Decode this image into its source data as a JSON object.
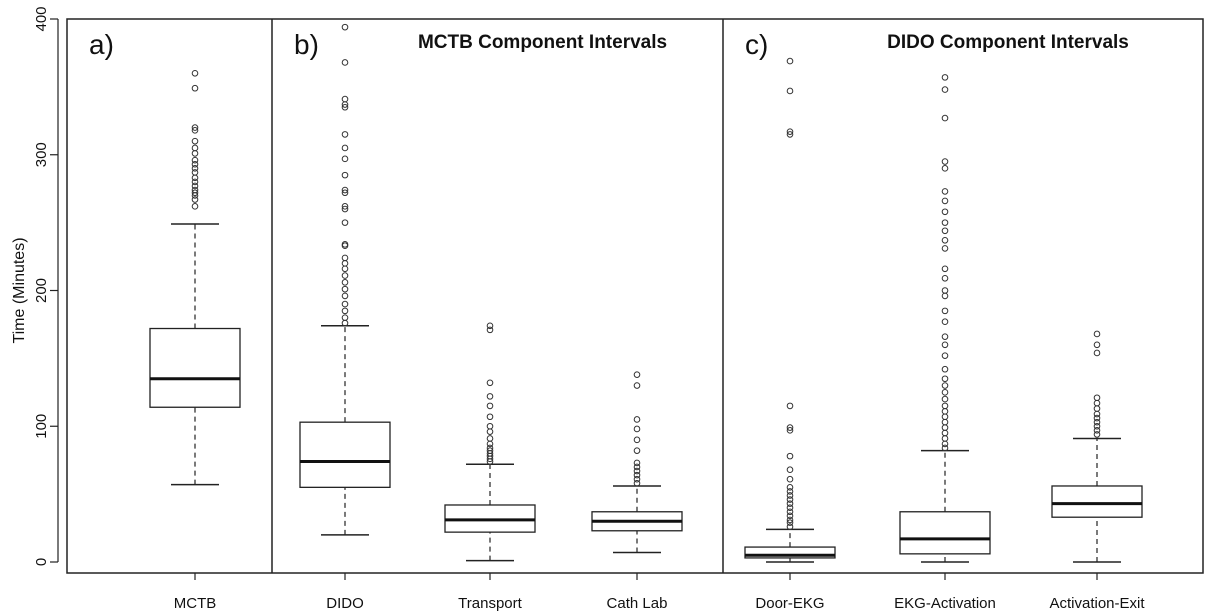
{
  "chart_data": {
    "type": "box",
    "ylabel": "Time (Minutes)",
    "ylim": [
      0,
      400
    ],
    "yticks": [
      0,
      100,
      200,
      300,
      400
    ],
    "panels": [
      {
        "label": "a)",
        "title": "",
        "categories": [
          {
            "name": "MCTB",
            "min": 57,
            "q1": 114,
            "median": 135,
            "q3": 172,
            "max": 249,
            "outliers": [
              262,
              267,
              270,
              272,
              274,
              277,
              280,
              283,
              287,
              290,
              293,
              296,
              301,
              305,
              310,
              318,
              320,
              349,
              360
            ]
          }
        ]
      },
      {
        "label": "b)",
        "title": "MCTB Component Intervals",
        "categories": [
          {
            "name": "DIDO",
            "min": 20,
            "q1": 55,
            "median": 74,
            "q3": 103,
            "max": 174,
            "outliers": [
              176,
              180,
              185,
              190,
              196,
              201,
              206,
              211,
              216,
              220,
              224,
              233,
              234,
              250,
              260,
              262,
              272,
              274,
              285,
              297,
              305,
              315,
              335,
              337,
              341,
              368,
              394
            ]
          },
          {
            "name": "Transport",
            "min": 1,
            "q1": 22,
            "median": 31,
            "q3": 42,
            "max": 72,
            "outliers": [
              74,
              76,
              78,
              80,
              82,
              84,
              87,
              91,
              96,
              100,
              107,
              115,
              122,
              132,
              171,
              174
            ]
          },
          {
            "name": "Cath Lab",
            "min": 7,
            "q1": 23,
            "median": 30,
            "q3": 37,
            "max": 56,
            "outliers": [
              58,
              61,
              64,
              67,
              70,
              73,
              82,
              90,
              98,
              105,
              130,
              138
            ]
          }
        ]
      },
      {
        "label": "c)",
        "title": "DIDO Component Intervals",
        "categories": [
          {
            "name": "Door-EKG",
            "min": 0,
            "q1": 3,
            "median": 5,
            "q3": 11,
            "max": 24,
            "outliers": [
              26,
              29,
              31,
              34,
              37,
              40,
              43,
              46,
              49,
              52,
              55,
              61,
              68,
              78,
              97,
              99,
              115,
              315,
              317,
              347,
              369
            ]
          },
          {
            "name": "EKG-Activation",
            "min": 0,
            "q1": 6,
            "median": 17,
            "q3": 37,
            "max": 82,
            "outliers": [
              84,
              87,
              91,
              95,
              99,
              103,
              107,
              111,
              115,
              120,
              125,
              130,
              135,
              142,
              152,
              160,
              166,
              177,
              185,
              196,
              200,
              209,
              216,
              231,
              237,
              244,
              250,
              258,
              266,
              273,
              290,
              295,
              327,
              348,
              357
            ]
          },
          {
            "name": "Activation-Exit",
            "min": 0,
            "q1": 33,
            "median": 43,
            "q3": 56,
            "max": 91,
            "outliers": [
              94,
              97,
              100,
              103,
              106,
              109,
              113,
              117,
              121,
              154,
              160,
              168
            ]
          }
        ]
      }
    ]
  }
}
